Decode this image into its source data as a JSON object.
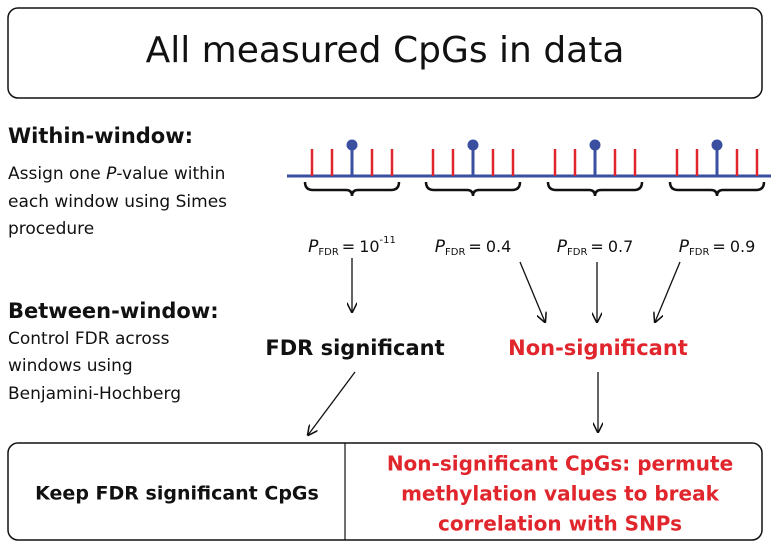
{
  "title": "All measured CpGs in data",
  "within_window": {
    "heading": "Within-window:",
    "line1_before": "Assign one ",
    "line1_italic": "P",
    "line1_after": "-value within",
    "line2": "each window using Simes",
    "line3": "procedure"
  },
  "p_symbol": "P",
  "p_subscript": "FDR",
  "equals": "=",
  "windows": [
    {
      "value": "10",
      "exponent": "-11"
    },
    {
      "value": "0.4"
    },
    {
      "value": "0.7"
    },
    {
      "value": "0.9"
    }
  ],
  "between_window": {
    "heading": "Between-window:",
    "lines": [
      "Control FDR across",
      "windows using",
      "Benjamini-Hochberg"
    ]
  },
  "outcomes": {
    "significant": "FDR significant",
    "non_significant": "Non-significant"
  },
  "bottom": {
    "left": "Keep FDR significant CpGs",
    "right_lines": [
      "Non-significant CpGs: permute",
      "methylation values to break",
      "correlation with SNPs"
    ]
  }
}
